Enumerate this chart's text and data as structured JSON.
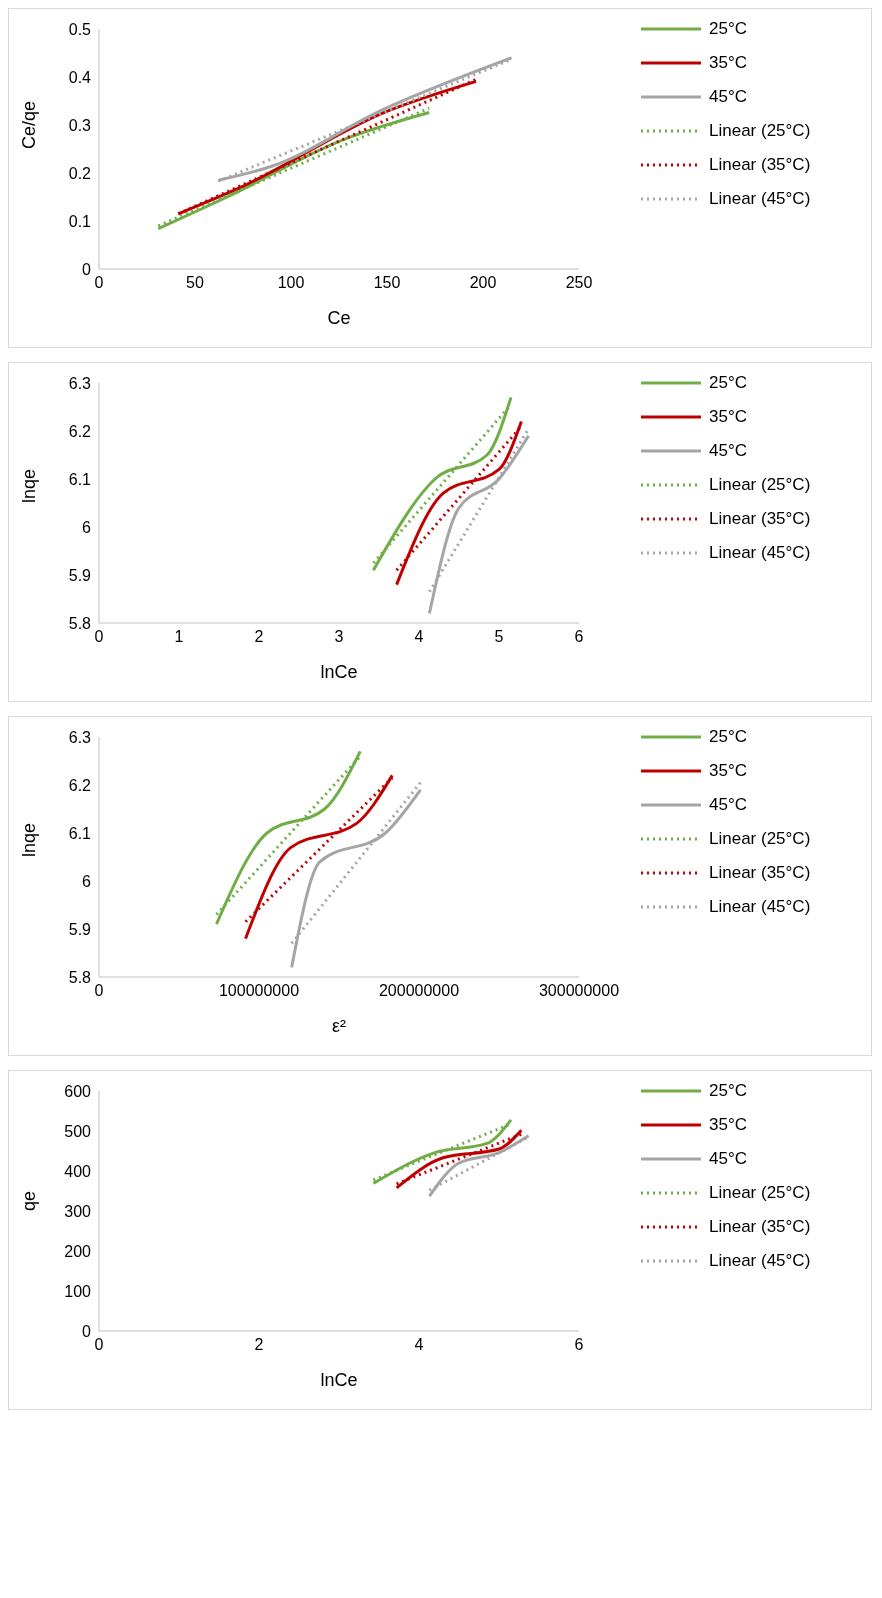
{
  "chart_data": [
    {
      "type": "line",
      "xlabel": "Ce",
      "ylabel": "Ce/qe",
      "xlim": [
        0,
        250
      ],
      "xticks": [
        0,
        50,
        100,
        150,
        200,
        250
      ],
      "ylim": [
        0,
        0.5
      ],
      "yticks": [
        0,
        0.1,
        0.2,
        0.3,
        0.4,
        0.5
      ],
      "grid": false,
      "legend": "right",
      "marker": "none",
      "line_style": "solid",
      "series": [
        {
          "name": "25°C",
          "color": "#70ad47",
          "x": [
            30.9,
            66.7,
            127.7,
            172.0
          ],
          "values": [
            0.084,
            0.15,
            0.27,
            0.326
          ]
        },
        {
          "name": "35°C",
          "color": "#c00000",
          "x": [
            41.3,
            73.7,
            148.4,
            196.4
          ],
          "values": [
            0.115,
            0.17,
            0.326,
            0.391
          ]
        },
        {
          "name": "45°C",
          "color": "#a5a5a5",
          "x": [
            62.2,
            90.0,
            148.4,
            214.9
          ],
          "values": [
            0.185,
            0.214,
            0.333,
            0.44
          ]
        },
        {
          "name": "Linear (25°C)",
          "color": "#70ad47",
          "line_style": "dotted",
          "x": [
            30.9,
            172.0
          ],
          "values": [
            0.09,
            0.335
          ]
        },
        {
          "name": "Linear (35°C)",
          "color": "#c00000",
          "line_style": "dotted",
          "x": [
            41.3,
            196.4
          ],
          "values": [
            0.115,
            0.395
          ]
        },
        {
          "name": "Linear (45°C)",
          "color": "#a5a5a5",
          "line_style": "dotted",
          "x": [
            62.2,
            214.9
          ],
          "values": [
            0.183,
            0.437
          ]
        }
      ]
    },
    {
      "type": "line",
      "xlabel": "lnCe",
      "ylabel": "lnqe",
      "xlim": [
        0,
        6
      ],
      "xticks": [
        0,
        1,
        2,
        3,
        4,
        5,
        6
      ],
      "ylim": [
        5.8,
        6.3
      ],
      "yticks": [
        5.8,
        5.9,
        6,
        6.1,
        6.2,
        6.3
      ],
      "grid": false,
      "legend": "right",
      "marker": "none",
      "line_style": "solid",
      "series": [
        {
          "name": "25°C",
          "color": "#70ad47",
          "x": [
            3.43,
            4.2,
            4.85,
            5.15
          ],
          "values": [
            5.91,
            6.1,
            6.15,
            6.27
          ]
        },
        {
          "name": "35°C",
          "color": "#c00000",
          "x": [
            3.72,
            4.3,
            5.0,
            5.28
          ],
          "values": [
            5.88,
            6.07,
            6.12,
            6.22
          ]
        },
        {
          "name": "45°C",
          "color": "#a5a5a5",
          "x": [
            4.13,
            4.5,
            5.0,
            5.37
          ],
          "values": [
            5.82,
            6.04,
            6.1,
            6.19
          ]
        },
        {
          "name": "Linear (25°C)",
          "color": "#70ad47",
          "line_style": "dotted",
          "x": [
            3.43,
            5.15
          ],
          "values": [
            5.925,
            6.255
          ]
        },
        {
          "name": "Linear (35°C)",
          "color": "#c00000",
          "line_style": "dotted",
          "x": [
            3.72,
            5.28
          ],
          "values": [
            5.91,
            6.21
          ]
        },
        {
          "name": "Linear (45°C)",
          "color": "#a5a5a5",
          "line_style": "dotted",
          "x": [
            4.13,
            5.37
          ],
          "values": [
            5.865,
            6.205
          ]
        }
      ]
    },
    {
      "type": "line",
      "xlabel": "ε²",
      "ylabel": "lnqe",
      "xlim": [
        0,
        300000000
      ],
      "xticks": [
        0,
        100000000,
        200000000,
        300000000
      ],
      "ylim": [
        5.8,
        6.3
      ],
      "yticks": [
        5.8,
        5.9,
        6,
        6.1,
        6.2,
        6.3
      ],
      "grid": false,
      "legend": "right",
      "marker": "none",
      "line_style": "solid",
      "series": [
        {
          "name": "25°C",
          "color": "#70ad47",
          "x": [
            73400000,
            105000000,
            141000000,
            163300000
          ],
          "values": [
            5.91,
            6.1,
            6.15,
            6.27
          ]
        },
        {
          "name": "35°C",
          "color": "#c00000",
          "x": [
            91600000,
            120000000,
            161000000,
            183300000
          ],
          "values": [
            5.88,
            6.07,
            6.12,
            6.22
          ]
        },
        {
          "name": "45°C",
          "color": "#a5a5a5",
          "x": [
            120400000,
            138000000,
            179000000,
            200900000
          ],
          "values": [
            5.82,
            6.04,
            6.1,
            6.19
          ]
        },
        {
          "name": "Linear (25°C)",
          "color": "#70ad47",
          "line_style": "dotted",
          "x": [
            73400000,
            163300000
          ],
          "values": [
            5.93,
            6.26
          ]
        },
        {
          "name": "Linear (35°C)",
          "color": "#c00000",
          "line_style": "dotted",
          "x": [
            91600000,
            183300000
          ],
          "values": [
            5.915,
            6.215
          ]
        },
        {
          "name": "Linear (45°C)",
          "color": "#a5a5a5",
          "line_style": "dotted",
          "x": [
            120400000,
            200900000
          ],
          "values": [
            5.87,
            6.205
          ]
        }
      ]
    },
    {
      "type": "line",
      "xlabel": "lnCe",
      "ylabel": "qe",
      "xlim": [
        0,
        6
      ],
      "xticks": [
        0,
        2,
        4,
        6
      ],
      "ylim": [
        0,
        600
      ],
      "yticks": [
        0,
        100,
        200,
        300,
        400,
        500,
        600
      ],
      "grid": false,
      "legend": "right",
      "marker": "none",
      "line_style": "solid",
      "series": [
        {
          "name": "25°C",
          "color": "#70ad47",
          "x": [
            3.43,
            4.2,
            4.85,
            5.15
          ],
          "values": [
            369,
            446,
            469,
            528
          ]
        },
        {
          "name": "35°C",
          "color": "#c00000",
          "x": [
            3.72,
            4.3,
            5.0,
            5.28
          ],
          "values": [
            358,
            433,
            455,
            502
          ]
        },
        {
          "name": "45°C",
          "color": "#a5a5a5",
          "x": [
            4.13,
            4.5,
            5.0,
            5.37
          ],
          "values": [
            337,
            420,
            446,
            488
          ]
        },
        {
          "name": "Linear (25°C)",
          "color": "#70ad47",
          "line_style": "dotted",
          "x": [
            3.43,
            5.15
          ],
          "values": [
            378,
            518
          ]
        },
        {
          "name": "Linear (35°C)",
          "color": "#c00000",
          "line_style": "dotted",
          "x": [
            3.72,
            5.28
          ],
          "values": [
            368,
            492
          ]
        },
        {
          "name": "Linear (45°C)",
          "color": "#a5a5a5",
          "line_style": "dotted",
          "x": [
            4.13,
            5.37
          ],
          "values": [
            352,
            485
          ]
        }
      ]
    }
  ]
}
